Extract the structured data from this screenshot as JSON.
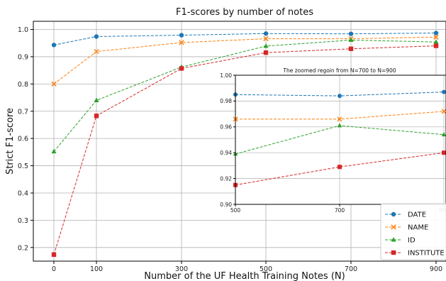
{
  "chart_data": [
    {
      "type": "line",
      "title": "F1-scores by number of notes",
      "xlabel": "Number of the UF Health Training Notes (N)",
      "ylabel": "Strict F1-score",
      "x": [
        0,
        100,
        300,
        500,
        700,
        900
      ],
      "x_tick_labels": [
        "0",
        "100",
        "300",
        "500",
        "700",
        "900"
      ],
      "y_ticks": [
        "0.2",
        "0.3",
        "0.4",
        "0.5",
        "0.6",
        "0.7",
        "0.8",
        "0.9",
        "1.0"
      ],
      "ylim": [
        0.15,
        1.03
      ],
      "grid": true,
      "legend_position": "bottom-right",
      "series": [
        {
          "name": "DATE",
          "color": "#1f77b4",
          "marker": "circle",
          "values": [
            0.943,
            0.974,
            0.979,
            0.985,
            0.984,
            0.987
          ]
        },
        {
          "name": "NAME",
          "color": "#ff7f0e",
          "marker": "x",
          "values": [
            0.8,
            0.919,
            0.952,
            0.966,
            0.966,
            0.972
          ]
        },
        {
          "name": "ID",
          "color": "#2ca02c",
          "marker": "triangle",
          "values": [
            0.552,
            0.74,
            0.862,
            0.939,
            0.961,
            0.954
          ]
        },
        {
          "name": "INSTITUTE",
          "color": "#d62728",
          "marker": "square",
          "values": [
            0.174,
            0.683,
            0.857,
            0.915,
            0.929,
            0.94
          ]
        }
      ]
    },
    {
      "type": "line",
      "title": "The zoomed regoin from N=700 to N=900",
      "x": [
        500,
        700,
        900
      ],
      "x_tick_labels": [
        "500",
        "700",
        "900"
      ],
      "y_ticks": [
        "0.90",
        "0.92",
        "0.94",
        "0.96",
        "0.98",
        "1.00"
      ],
      "ylim": [
        0.9,
        1.0
      ],
      "grid": true,
      "series": [
        {
          "name": "DATE",
          "values": [
            0.985,
            0.984,
            0.987
          ]
        },
        {
          "name": "NAME",
          "values": [
            0.966,
            0.966,
            0.972
          ]
        },
        {
          "name": "ID",
          "values": [
            0.939,
            0.961,
            0.954
          ]
        },
        {
          "name": "INSTITUTE",
          "values": [
            0.915,
            0.929,
            0.94
          ]
        }
      ]
    }
  ]
}
